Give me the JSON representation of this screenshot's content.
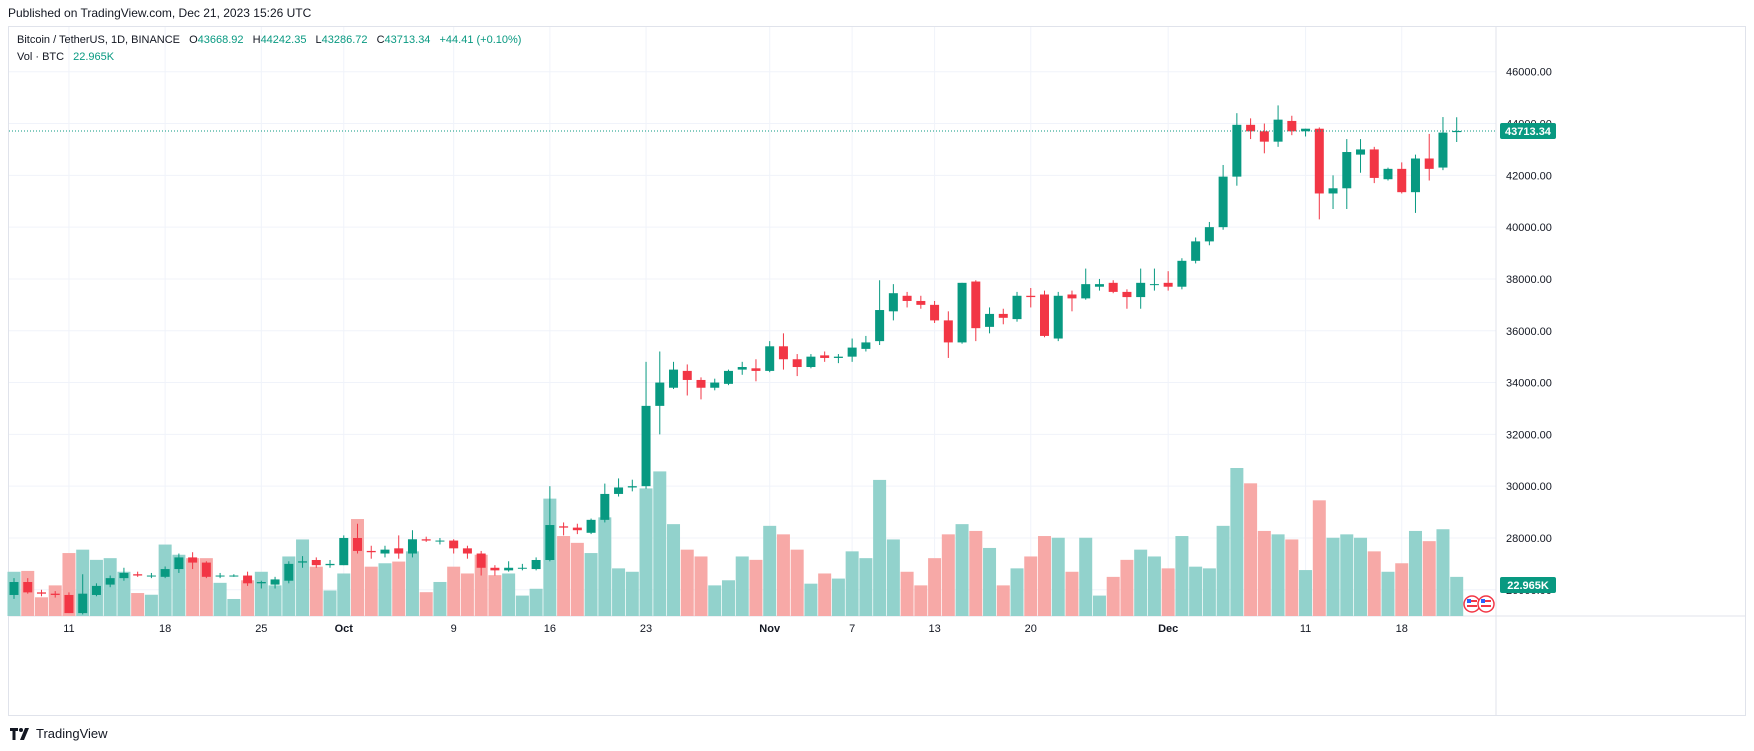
{
  "header": {
    "published": "Published on TradingView.com, Dec 21, 2023 15:26 UTC"
  },
  "legend": {
    "symbol": "Bitcoin / TetherUS, 1D, BINANCE",
    "o_label": "O",
    "o": "43668.92",
    "h_label": "H",
    "h": "44242.35",
    "l_label": "L",
    "l": "43286.72",
    "c_label": "C",
    "c": "43713.34",
    "change": "+44.41 (+0.10%)",
    "vol_label": "Vol · BTC",
    "vol": "22.965K"
  },
  "footer": {
    "brand": "TradingView"
  },
  "colors": {
    "up": "#089981",
    "down": "#f23645",
    "vol_up": "#92d2cc",
    "vol_down": "#f7a9a7",
    "grid": "#f0f3fa",
    "text": "#131722"
  },
  "chart_data": {
    "type": "candlestick",
    "y_ticks": [
      "26000.00",
      "28000.00",
      "30000.00",
      "32000.00",
      "34000.00",
      "36000.00",
      "38000.00",
      "40000.00",
      "42000.00",
      "44000.00",
      "46000.00"
    ],
    "ylim": [
      24100,
      46800
    ],
    "last_price": 43713.34,
    "last_price_label": "43713.34",
    "last_volume_label": "22.965K",
    "x_tick_labels": [
      {
        "index": 4,
        "label": "11"
      },
      {
        "index": 11,
        "label": "18"
      },
      {
        "index": 18,
        "label": "25"
      },
      {
        "index": 24,
        "label": "Oct"
      },
      {
        "index": 32,
        "label": "9"
      },
      {
        "index": 39,
        "label": "16"
      },
      {
        "index": 46,
        "label": "23"
      },
      {
        "index": 55,
        "label": "Nov"
      },
      {
        "index": 61,
        "label": "7"
      },
      {
        "index": 67,
        "label": "13"
      },
      {
        "index": 74,
        "label": "20"
      },
      {
        "index": 84,
        "label": "Dec"
      },
      {
        "index": 94,
        "label": "11"
      },
      {
        "index": 101,
        "label": "18"
      }
    ],
    "candles": [
      {
        "o": 25800,
        "h": 26450,
        "l": 25650,
        "c": 26300,
        "v": 2600
      },
      {
        "o": 26300,
        "h": 26450,
        "l": 25850,
        "c": 25900,
        "v": 2650
      },
      {
        "o": 25900,
        "h": 26000,
        "l": 25750,
        "c": 25850,
        "v": 1100
      },
      {
        "o": 25850,
        "h": 25950,
        "l": 25700,
        "c": 25800,
        "v": 1800
      },
      {
        "o": 25800,
        "h": 25900,
        "l": 25100,
        "c": 25100,
        "v": 3700
      },
      {
        "o": 25100,
        "h": 26600,
        "l": 25050,
        "c": 25850,
        "v": 3900
      },
      {
        "o": 25800,
        "h": 26250,
        "l": 25750,
        "c": 26150,
        "v": 3300
      },
      {
        "o": 26200,
        "h": 26550,
        "l": 26100,
        "c": 26450,
        "v": 3400
      },
      {
        "o": 26450,
        "h": 26850,
        "l": 26350,
        "c": 26650,
        "v": 2600
      },
      {
        "o": 26600,
        "h": 26700,
        "l": 26500,
        "c": 26550,
        "v": 1350
      },
      {
        "o": 26550,
        "h": 26650,
        "l": 26450,
        "c": 26550,
        "v": 1250
      },
      {
        "o": 26500,
        "h": 26900,
        "l": 26450,
        "c": 26800,
        "v": 4200
      },
      {
        "o": 26800,
        "h": 27400,
        "l": 26650,
        "c": 27250,
        "v": 3600
      },
      {
        "o": 27250,
        "h": 27450,
        "l": 26800,
        "c": 27050,
        "v": 3400
      },
      {
        "o": 27050,
        "h": 27100,
        "l": 26450,
        "c": 26500,
        "v": 3400
      },
      {
        "o": 26550,
        "h": 26650,
        "l": 26450,
        "c": 26550,
        "v": 1950
      },
      {
        "o": 26550,
        "h": 26600,
        "l": 26500,
        "c": 26550,
        "v": 1000
      },
      {
        "o": 26550,
        "h": 26700,
        "l": 26150,
        "c": 26250,
        "v": 2100
      },
      {
        "o": 26250,
        "h": 26350,
        "l": 26050,
        "c": 26300,
        "v": 2600
      },
      {
        "o": 26200,
        "h": 26500,
        "l": 26050,
        "c": 26400,
        "v": 1800
      },
      {
        "o": 26350,
        "h": 27100,
        "l": 26250,
        "c": 27000,
        "v": 3500
      },
      {
        "o": 27050,
        "h": 27300,
        "l": 26850,
        "c": 27100,
        "v": 4500
      },
      {
        "o": 27150,
        "h": 27250,
        "l": 26850,
        "c": 26950,
        "v": 2900
      },
      {
        "o": 26950,
        "h": 27150,
        "l": 26850,
        "c": 27000,
        "v": 1500
      },
      {
        "o": 26950,
        "h": 28100,
        "l": 26950,
        "c": 28000,
        "v": 2500
      },
      {
        "o": 28000,
        "h": 28550,
        "l": 27400,
        "c": 27500,
        "v": 5700
      },
      {
        "o": 27500,
        "h": 27700,
        "l": 27200,
        "c": 27450,
        "v": 2900
      },
      {
        "o": 27400,
        "h": 27700,
        "l": 27250,
        "c": 27550,
        "v": 3100
      },
      {
        "o": 27600,
        "h": 28100,
        "l": 27200,
        "c": 27400,
        "v": 3200
      },
      {
        "o": 27400,
        "h": 28300,
        "l": 27250,
        "c": 27950,
        "v": 3800
      },
      {
        "o": 27950,
        "h": 28050,
        "l": 27850,
        "c": 27900,
        "v": 1400
      },
      {
        "o": 27900,
        "h": 28000,
        "l": 27750,
        "c": 27900,
        "v": 2000
      },
      {
        "o": 27900,
        "h": 27950,
        "l": 27400,
        "c": 27600,
        "v": 2900
      },
      {
        "o": 27600,
        "h": 27700,
        "l": 27200,
        "c": 27400,
        "v": 2500
      },
      {
        "o": 27400,
        "h": 27500,
        "l": 26550,
        "c": 26850,
        "v": 3600
      },
      {
        "o": 26850,
        "h": 26950,
        "l": 26550,
        "c": 26750,
        "v": 2400
      },
      {
        "o": 26750,
        "h": 27100,
        "l": 26700,
        "c": 26850,
        "v": 2500
      },
      {
        "o": 26850,
        "h": 27000,
        "l": 26750,
        "c": 26850,
        "v": 1200
      },
      {
        "o": 26800,
        "h": 27250,
        "l": 26750,
        "c": 27150,
        "v": 1600
      },
      {
        "o": 27150,
        "h": 30000,
        "l": 27100,
        "c": 28500,
        "v": 6900
      },
      {
        "o": 28450,
        "h": 28600,
        "l": 28100,
        "c": 28400,
        "v": 4700
      },
      {
        "o": 28400,
        "h": 28550,
        "l": 28150,
        "c": 28300,
        "v": 4300
      },
      {
        "o": 28200,
        "h": 28750,
        "l": 28150,
        "c": 28700,
        "v": 3700
      },
      {
        "o": 28700,
        "h": 30100,
        "l": 28600,
        "c": 29700,
        "v": 5800
      },
      {
        "o": 29700,
        "h": 30300,
        "l": 29600,
        "c": 29950,
        "v": 2800
      },
      {
        "o": 29950,
        "h": 30250,
        "l": 29800,
        "c": 30000,
        "v": 2600
      },
      {
        "o": 30000,
        "h": 34800,
        "l": 29900,
        "c": 33100,
        "v": 7500
      },
      {
        "o": 33100,
        "h": 35200,
        "l": 32000,
        "c": 34000,
        "v": 8500
      },
      {
        "o": 33800,
        "h": 34800,
        "l": 33750,
        "c": 34500,
        "v": 5400
      },
      {
        "o": 34450,
        "h": 34700,
        "l": 33500,
        "c": 34100,
        "v": 3900
      },
      {
        "o": 34100,
        "h": 34200,
        "l": 33350,
        "c": 33800,
        "v": 3500
      },
      {
        "o": 33800,
        "h": 34150,
        "l": 33700,
        "c": 34000,
        "v": 1800
      },
      {
        "o": 33950,
        "h": 34500,
        "l": 33900,
        "c": 34450,
        "v": 2100
      },
      {
        "o": 34500,
        "h": 34800,
        "l": 34300,
        "c": 34600,
        "v": 3500
      },
      {
        "o": 34550,
        "h": 34900,
        "l": 34050,
        "c": 34450,
        "v": 3300
      },
      {
        "o": 34450,
        "h": 35600,
        "l": 34400,
        "c": 35400,
        "v": 5300
      },
      {
        "o": 35400,
        "h": 35900,
        "l": 34500,
        "c": 34900,
        "v": 4800
      },
      {
        "o": 34900,
        "h": 35100,
        "l": 34250,
        "c": 34600,
        "v": 3900
      },
      {
        "o": 34600,
        "h": 35100,
        "l": 34550,
        "c": 35000,
        "v": 1900
      },
      {
        "o": 35050,
        "h": 35200,
        "l": 34800,
        "c": 34950,
        "v": 2500
      },
      {
        "o": 34950,
        "h": 35100,
        "l": 34750,
        "c": 35000,
        "v": 2200
      },
      {
        "o": 35000,
        "h": 35700,
        "l": 34800,
        "c": 35350,
        "v": 3800
      },
      {
        "o": 35300,
        "h": 35800,
        "l": 35200,
        "c": 35550,
        "v": 3400
      },
      {
        "o": 35600,
        "h": 37950,
        "l": 35450,
        "c": 36800,
        "v": 8000
      },
      {
        "o": 36750,
        "h": 37800,
        "l": 36400,
        "c": 37450,
        "v": 4500
      },
      {
        "o": 37350,
        "h": 37500,
        "l": 36900,
        "c": 37150,
        "v": 2600
      },
      {
        "o": 37150,
        "h": 37350,
        "l": 36850,
        "c": 37000,
        "v": 1800
      },
      {
        "o": 37000,
        "h": 37150,
        "l": 36300,
        "c": 36400,
        "v": 3400
      },
      {
        "o": 36400,
        "h": 36750,
        "l": 34950,
        "c": 35550,
        "v": 4800
      },
      {
        "o": 35550,
        "h": 37850,
        "l": 35500,
        "c": 37850,
        "v": 5400
      },
      {
        "o": 37900,
        "h": 37950,
        "l": 35600,
        "c": 36100,
        "v": 5000
      },
      {
        "o": 36150,
        "h": 36900,
        "l": 35900,
        "c": 36650,
        "v": 4000
      },
      {
        "o": 36650,
        "h": 36850,
        "l": 36250,
        "c": 36500,
        "v": 1800
      },
      {
        "o": 36450,
        "h": 37500,
        "l": 36350,
        "c": 37350,
        "v": 2800
      },
      {
        "o": 37350,
        "h": 37650,
        "l": 36900,
        "c": 37300,
        "v": 3500
      },
      {
        "o": 37400,
        "h": 37550,
        "l": 35750,
        "c": 35800,
        "v": 4700
      },
      {
        "o": 35700,
        "h": 37500,
        "l": 35600,
        "c": 37350,
        "v": 4600
      },
      {
        "o": 37400,
        "h": 37550,
        "l": 36750,
        "c": 37250,
        "v": 2600
      },
      {
        "o": 37250,
        "h": 38400,
        "l": 37200,
        "c": 37800,
        "v": 4600
      },
      {
        "o": 37700,
        "h": 38000,
        "l": 37550,
        "c": 37800,
        "v": 1200
      },
      {
        "o": 37850,
        "h": 37950,
        "l": 37450,
        "c": 37500,
        "v": 2300
      },
      {
        "o": 37500,
        "h": 37600,
        "l": 36850,
        "c": 37300,
        "v": 3300
      },
      {
        "o": 37300,
        "h": 38400,
        "l": 36850,
        "c": 37850,
        "v": 3900
      },
      {
        "o": 37800,
        "h": 38400,
        "l": 37550,
        "c": 37800,
        "v": 3500
      },
      {
        "o": 37850,
        "h": 38300,
        "l": 37550,
        "c": 37700,
        "v": 2800
      },
      {
        "o": 37700,
        "h": 38800,
        "l": 37600,
        "c": 38700,
        "v": 4700
      },
      {
        "o": 38700,
        "h": 39600,
        "l": 38600,
        "c": 39450,
        "v": 2900
      },
      {
        "o": 39450,
        "h": 40200,
        "l": 39300,
        "c": 40000,
        "v": 2800
      },
      {
        "o": 40000,
        "h": 42400,
        "l": 39900,
        "c": 41950,
        "v": 5300
      },
      {
        "o": 41950,
        "h": 44400,
        "l": 41600,
        "c": 43950,
        "v": 8700
      },
      {
        "o": 43950,
        "h": 44200,
        "l": 43400,
        "c": 43700,
        "v": 7800
      },
      {
        "o": 43700,
        "h": 44000,
        "l": 42850,
        "c": 43300,
        "v": 5000
      },
      {
        "o": 43300,
        "h": 44700,
        "l": 43100,
        "c": 44150,
        "v": 4800
      },
      {
        "o": 44100,
        "h": 44300,
        "l": 43550,
        "c": 43700,
        "v": 4500
      },
      {
        "o": 43700,
        "h": 43800,
        "l": 43500,
        "c": 43800,
        "v": 2700
      },
      {
        "o": 43800,
        "h": 43850,
        "l": 40300,
        "c": 41300,
        "v": 6800
      },
      {
        "o": 41300,
        "h": 42000,
        "l": 40700,
        "c": 41500,
        "v": 4600
      },
      {
        "o": 41500,
        "h": 43400,
        "l": 40700,
        "c": 42900,
        "v": 4800
      },
      {
        "o": 42800,
        "h": 43400,
        "l": 42100,
        "c": 43000,
        "v": 4600
      },
      {
        "o": 43000,
        "h": 43100,
        "l": 41700,
        "c": 41900,
        "v": 3800
      },
      {
        "o": 41850,
        "h": 42300,
        "l": 41800,
        "c": 42250,
        "v": 2600
      },
      {
        "o": 42250,
        "h": 42500,
        "l": 41300,
        "c": 41350,
        "v": 3100
      },
      {
        "o": 41350,
        "h": 42800,
        "l": 40550,
        "c": 42650,
        "v": 5000
      },
      {
        "o": 42650,
        "h": 43600,
        "l": 41800,
        "c": 42250,
        "v": 4400
      },
      {
        "o": 42300,
        "h": 44250,
        "l": 42200,
        "c": 43650,
        "v": 5100
      },
      {
        "o": 43668.92,
        "h": 44242.35,
        "l": 43286.72,
        "c": 43713.34,
        "v": 2300
      }
    ]
  }
}
